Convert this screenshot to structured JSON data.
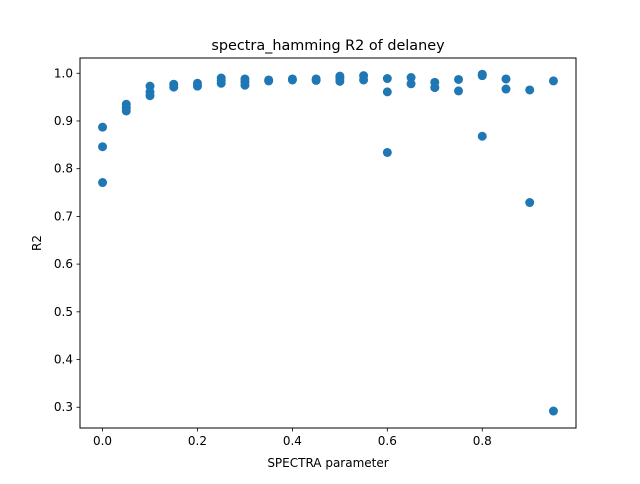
{
  "chart_data": {
    "type": "scatter",
    "title": "spectra_hamming R2 of delaney",
    "xlabel": "SPECTRA parameter",
    "ylabel": "R2",
    "xlim": [
      -0.0475,
      0.9975
    ],
    "ylim": [
      0.2565,
      1.032
    ],
    "xticks": [
      0.0,
      0.2,
      0.4,
      0.6,
      0.8
    ],
    "xtick_labels": [
      "0.0",
      "0.2",
      "0.4",
      "0.6",
      "0.8"
    ],
    "yticks": [
      0.3,
      0.4,
      0.5,
      0.6,
      0.7,
      0.8,
      0.9,
      1.0
    ],
    "ytick_labels": [
      "0.3",
      "0.4",
      "0.5",
      "0.6",
      "0.7",
      "0.8",
      "0.9",
      "1.0"
    ],
    "grid": false,
    "legend": "none",
    "marker_color": "#1f77b4",
    "series": [
      {
        "points": [
          [
            0.0,
            0.887
          ],
          [
            0.0,
            0.846
          ],
          [
            0.0,
            0.771
          ],
          [
            0.05,
            0.935
          ],
          [
            0.05,
            0.928
          ],
          [
            0.05,
            0.921
          ],
          [
            0.1,
            0.973
          ],
          [
            0.1,
            0.961
          ],
          [
            0.1,
            0.953
          ],
          [
            0.15,
            0.977
          ],
          [
            0.15,
            0.971
          ],
          [
            0.2,
            0.979
          ],
          [
            0.2,
            0.973
          ],
          [
            0.25,
            0.99
          ],
          [
            0.25,
            0.985
          ],
          [
            0.25,
            0.979
          ],
          [
            0.3,
            0.988
          ],
          [
            0.3,
            0.982
          ],
          [
            0.3,
            0.975
          ],
          [
            0.35,
            0.986
          ],
          [
            0.35,
            0.984
          ],
          [
            0.4,
            0.988
          ],
          [
            0.4,
            0.986
          ],
          [
            0.45,
            0.988
          ],
          [
            0.45,
            0.985
          ],
          [
            0.5,
            0.994
          ],
          [
            0.5,
            0.989
          ],
          [
            0.5,
            0.983
          ],
          [
            0.55,
            0.995
          ],
          [
            0.55,
            0.986
          ],
          [
            0.6,
            0.989
          ],
          [
            0.6,
            0.961
          ],
          [
            0.6,
            0.834
          ],
          [
            0.65,
            0.991
          ],
          [
            0.65,
            0.978
          ],
          [
            0.7,
            0.981
          ],
          [
            0.7,
            0.97
          ],
          [
            0.75,
            0.987
          ],
          [
            0.75,
            0.963
          ],
          [
            0.8,
            0.998
          ],
          [
            0.8,
            0.995
          ],
          [
            0.8,
            0.868
          ],
          [
            0.85,
            0.988
          ],
          [
            0.85,
            0.967
          ],
          [
            0.9,
            0.965
          ],
          [
            0.9,
            0.729
          ],
          [
            0.95,
            0.984
          ],
          [
            0.95,
            0.292
          ]
        ]
      }
    ]
  }
}
